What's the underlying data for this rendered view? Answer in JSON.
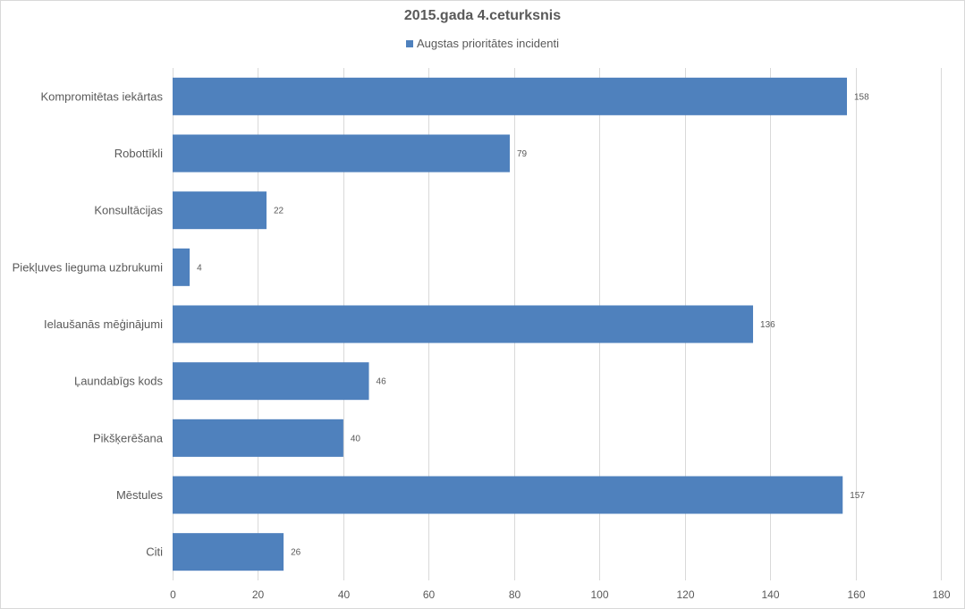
{
  "chart_data": {
    "type": "bar",
    "orientation": "horizontal",
    "title": "2015.gada 4.ceturksnis",
    "categories": [
      "Kompromitētas iekārtas",
      "Robottīkli",
      "Konsultācijas",
      "Piekļuves lieguma uzbrukumi",
      "Ielaušanās mēģinājumi",
      "Ļaundabīgs kods",
      "Pikšķerēšana",
      "Mēstules",
      "Citi"
    ],
    "series": [
      {
        "name": "Augstas prioritātes incidenti",
        "values": [
          158,
          79,
          22,
          4,
          136,
          46,
          40,
          157,
          26
        ],
        "color": "#4f81bd"
      }
    ],
    "xlim": [
      0,
      180
    ],
    "xticks": [
      "0",
      "20",
      "40",
      "60",
      "80",
      "100",
      "120",
      "140",
      "160",
      "180"
    ],
    "grid": true,
    "legend_position": "top",
    "data_labels": true
  }
}
